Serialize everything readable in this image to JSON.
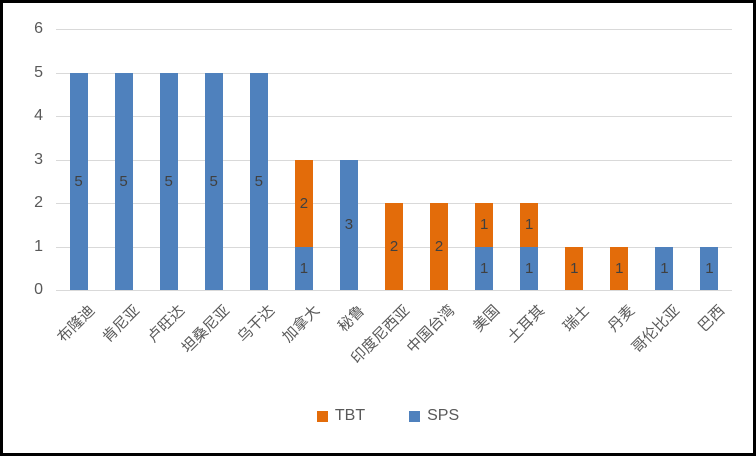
{
  "chart_data": {
    "type": "bar",
    "stacked": true,
    "title": "",
    "xlabel": "",
    "ylabel": "",
    "categories": [
      "布隆迪",
      "肯尼亚",
      "卢旺达",
      "坦桑尼亚",
      "乌干达",
      "加拿大",
      "秘鲁",
      "印度尼西亚",
      "中国台湾",
      "美国",
      "土耳其",
      "瑞士",
      "丹麦",
      "哥伦比亚",
      "巴西"
    ],
    "series": [
      {
        "name": "TBT",
        "color": "#E36C0A",
        "values": [
          0,
          0,
          0,
          0,
          0,
          2,
          0,
          2,
          2,
          1,
          1,
          1,
          1,
          0,
          0
        ]
      },
      {
        "name": "SPS",
        "color": "#4F81BD",
        "values": [
          5,
          5,
          5,
          5,
          5,
          1,
          3,
          0,
          0,
          1,
          1,
          0,
          0,
          1,
          1
        ]
      }
    ],
    "totals": [
      5,
      5,
      5,
      5,
      5,
      3,
      3,
      2,
      2,
      2,
      2,
      1,
      1,
      1,
      1
    ],
    "ylim": [
      0,
      6
    ],
    "yticks": [
      0,
      1,
      2,
      3,
      4,
      5,
      6
    ],
    "grid": true,
    "legend_position": "bottom",
    "data_labels": true,
    "colors": {
      "data_label": "#404040",
      "tick_label": "#595959",
      "gridline": "#D9D9D9",
      "frame_border": "#000000",
      "background": "#ffffff"
    }
  }
}
